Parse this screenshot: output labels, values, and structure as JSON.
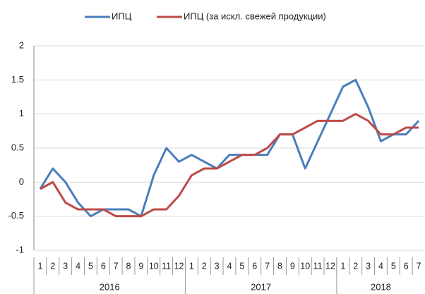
{
  "chart_data": {
    "type": "line",
    "categories": [
      "1",
      "2",
      "3",
      "4",
      "5",
      "6",
      "7",
      "8",
      "9",
      "10",
      "11",
      "12",
      "1",
      "2",
      "3",
      "4",
      "5",
      "6",
      "7",
      "8",
      "9",
      "10",
      "11",
      "12",
      "1",
      "2",
      "3",
      "4",
      "5",
      "6",
      "7"
    ],
    "x_groups": [
      "2016",
      "2017",
      "2018"
    ],
    "series": [
      {
        "name": "ИПЦ",
        "color": "#4a7ebb",
        "values": [
          -0.1,
          0.2,
          0.0,
          -0.3,
          -0.5,
          -0.4,
          -0.4,
          -0.4,
          -0.5,
          0.1,
          0.5,
          0.3,
          0.4,
          0.3,
          0.2,
          0.4,
          0.4,
          0.4,
          0.4,
          0.7,
          0.7,
          0.2,
          0.6,
          1.0,
          1.4,
          1.5,
          1.1,
          0.6,
          0.7,
          0.7,
          0.9
        ]
      },
      {
        "name": "ИПЦ (за искл. свежей продукции)",
        "color": "#be4b48",
        "values": [
          -0.1,
          0.0,
          -0.3,
          -0.4,
          -0.4,
          -0.4,
          -0.5,
          -0.5,
          -0.5,
          -0.4,
          -0.4,
          -0.2,
          0.1,
          0.2,
          0.2,
          0.3,
          0.4,
          0.4,
          0.5,
          0.7,
          0.7,
          0.8,
          0.9,
          0.9,
          0.9,
          1.0,
          0.9,
          0.7,
          0.7,
          0.8,
          0.8
        ]
      }
    ],
    "ylim": [
      -1,
      2
    ],
    "yticks": [
      -1,
      -0.5,
      0,
      0.5,
      1,
      1.5,
      2
    ],
    "grid": true,
    "legend": "top"
  }
}
